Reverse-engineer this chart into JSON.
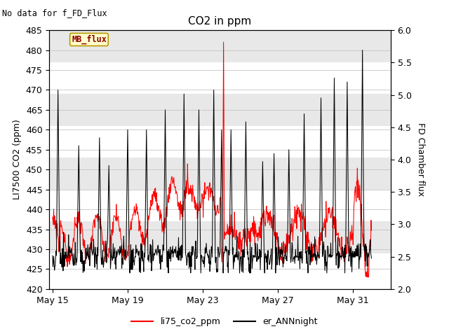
{
  "title": "CO2 in ppm",
  "ylabel_left": "LI7500 CO2 (ppm)",
  "ylabel_right": "FD Chamber flux",
  "no_data_text": "No data for f_FD_Flux",
  "mb_flux_label": "MB_flux",
  "ylim_left": [
    420,
    485
  ],
  "ylim_right": [
    2.0,
    6.0
  ],
  "yticks_left": [
    420,
    425,
    430,
    435,
    440,
    445,
    450,
    455,
    460,
    465,
    470,
    475,
    480,
    485
  ],
  "yticks_right": [
    2.0,
    2.5,
    3.0,
    3.5,
    4.0,
    4.5,
    5.0,
    5.5,
    6.0
  ],
  "xtick_labels": [
    "May 15",
    "May 19",
    "May 23",
    "May 27",
    "May 31"
  ],
  "legend_labels": [
    "li75_co2_ppm",
    "er_ANNnight"
  ],
  "band_color": "#e8e8e8",
  "band_ranges": [
    [
      477,
      485
    ],
    [
      461,
      469
    ],
    [
      445,
      453
    ],
    [
      429,
      437
    ]
  ],
  "title_fontsize": 11,
  "label_fontsize": 9,
  "tick_fontsize": 9,
  "figsize": [
    6.4,
    4.8
  ],
  "dpi": 100
}
